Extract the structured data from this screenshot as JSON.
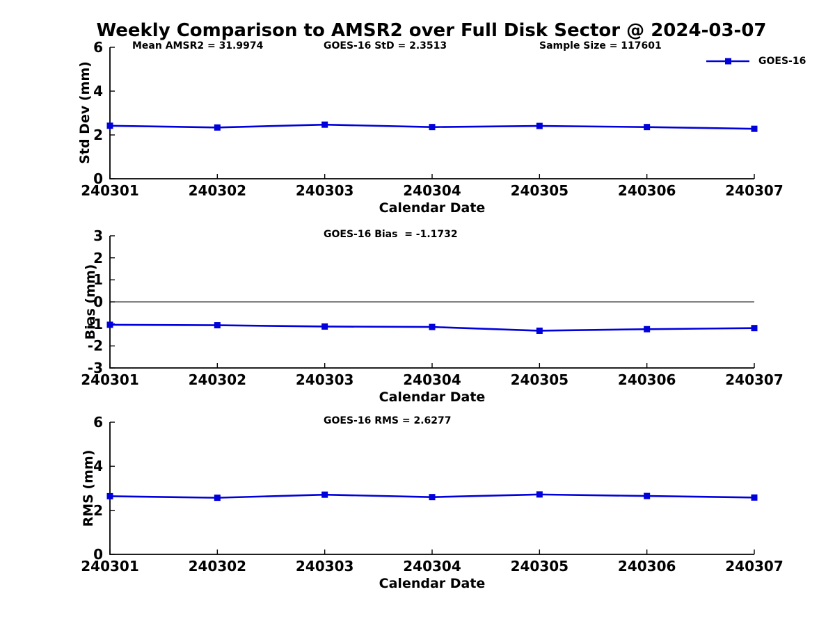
{
  "title": "Weekly Comparison to AMSR2 over Full Disk Sector @ 2024-03-07",
  "colors": {
    "line": "#0000dd",
    "axis": "#000000",
    "text": "#000000",
    "background": "#ffffff"
  },
  "legend": {
    "label": "GOES-16",
    "position": "top-right"
  },
  "chart_data": [
    {
      "type": "line",
      "panel": "std-dev",
      "annotations": [
        "Mean AMSR2 = 31.9974",
        "GOES-16 StD = 2.3513",
        "Sample Size = 117601"
      ],
      "categories": [
        "240301",
        "240302",
        "240303",
        "240304",
        "240305",
        "240306",
        "240307"
      ],
      "series": [
        {
          "name": "GOES-16",
          "marker": "square",
          "values": [
            2.42,
            2.34,
            2.47,
            2.36,
            2.41,
            2.36,
            2.28
          ]
        }
      ],
      "xlabel": "Calendar Date",
      "ylabel": "Std Dev (mm)",
      "ylim": [
        0,
        6
      ],
      "yticks": [
        0,
        2,
        4,
        6
      ],
      "zero_line": false,
      "grid": false
    },
    {
      "type": "line",
      "panel": "bias",
      "annotations": [
        "GOES-16 Bias  = -1.1732"
      ],
      "categories": [
        "240301",
        "240302",
        "240303",
        "240304",
        "240305",
        "240306",
        "240307"
      ],
      "series": [
        {
          "name": "GOES-16",
          "marker": "square",
          "values": [
            -1.04,
            -1.06,
            -1.12,
            -1.14,
            -1.31,
            -1.24,
            -1.19
          ]
        }
      ],
      "xlabel": "Calendar Date",
      "ylabel": "Bias (mm)",
      "ylim": [
        -3,
        3
      ],
      "yticks": [
        3,
        2,
        1,
        0,
        -1,
        -2,
        -3
      ],
      "zero_line": true,
      "grid": false
    },
    {
      "type": "line",
      "panel": "rms",
      "annotations": [
        "GOES-16 RMS = 2.6277"
      ],
      "categories": [
        "240301",
        "240302",
        "240303",
        "240304",
        "240305",
        "240306",
        "240307"
      ],
      "series": [
        {
          "name": "GOES-16",
          "marker": "square",
          "values": [
            2.64,
            2.57,
            2.71,
            2.6,
            2.72,
            2.65,
            2.58
          ]
        }
      ],
      "xlabel": "Calendar Date",
      "ylabel": "RMS (mm)",
      "ylim": [
        0,
        6
      ],
      "yticks": [
        0,
        2,
        4,
        6
      ],
      "zero_line": false,
      "grid": false
    }
  ]
}
